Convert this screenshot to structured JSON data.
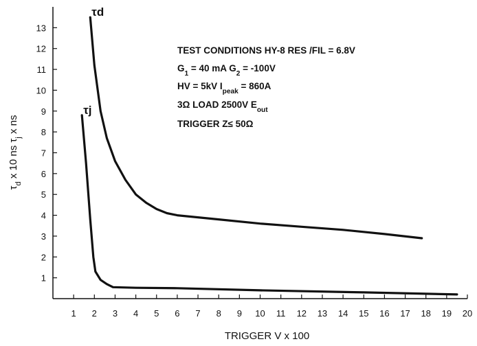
{
  "chart_data": {
    "type": "line",
    "x_label": "TRIGGER V x 100",
    "y_label": [
      {
        "text": "τ"
      },
      {
        "text": "d",
        "sub": true
      },
      {
        "text": " x 10 ns  τ"
      },
      {
        "text": "j",
        "sub": true
      },
      {
        "text": " x ns"
      }
    ],
    "xlim": [
      0,
      20
    ],
    "ylim": [
      0,
      14
    ],
    "xticks": [
      1,
      2,
      3,
      4,
      5,
      6,
      7,
      8,
      9,
      10,
      11,
      12,
      13,
      14,
      15,
      16,
      17,
      18,
      19,
      20
    ],
    "yticks": [
      1,
      2,
      3,
      4,
      5,
      6,
      7,
      8,
      9,
      10,
      11,
      12,
      13
    ],
    "series": [
      {
        "name": "τd",
        "color": "#111111",
        "x": [
          1.8,
          2.0,
          2.3,
          2.6,
          3.0,
          3.5,
          4.0,
          4.5,
          5.0,
          5.5,
          6.0,
          8.0,
          10.0,
          12.0,
          14.0,
          16.0,
          17.8
        ],
        "values": [
          13.5,
          11.2,
          9.0,
          7.7,
          6.6,
          5.7,
          5.0,
          4.6,
          4.3,
          4.1,
          4.0,
          3.8,
          3.6,
          3.45,
          3.3,
          3.1,
          2.9
        ]
      },
      {
        "name": "τj",
        "color": "#111111",
        "x": [
          1.4,
          1.6,
          1.8,
          1.95,
          2.05,
          2.3,
          2.6,
          2.9,
          4.0,
          6.0,
          10.0,
          15.0,
          19.5
        ],
        "values": [
          8.8,
          6.5,
          3.8,
          2.0,
          1.3,
          0.9,
          0.7,
          0.55,
          0.52,
          0.5,
          0.4,
          0.3,
          0.2
        ]
      }
    ],
    "annotations": [
      [
        {
          "text": "TEST CONDITIONS HY-8  RES /FIL = 6.8V"
        }
      ],
      [
        {
          "text": "G"
        },
        {
          "text": "1",
          "sub": true
        },
        {
          "text": " = 40  mA G"
        },
        {
          "text": "2",
          "sub": true
        },
        {
          "text": " =  -100V"
        }
      ],
      [
        {
          "text": "HV = 5kV  I"
        },
        {
          "text": "peak",
          "sub": true
        },
        {
          "text": "  = 860A"
        }
      ],
      [
        {
          "text": "3Ω   LOAD 2500V  E"
        },
        {
          "text": "out",
          "sub": true
        }
      ],
      [
        {
          "text": "TRIGGER  Z≤  50Ω"
        }
      ]
    ]
  }
}
